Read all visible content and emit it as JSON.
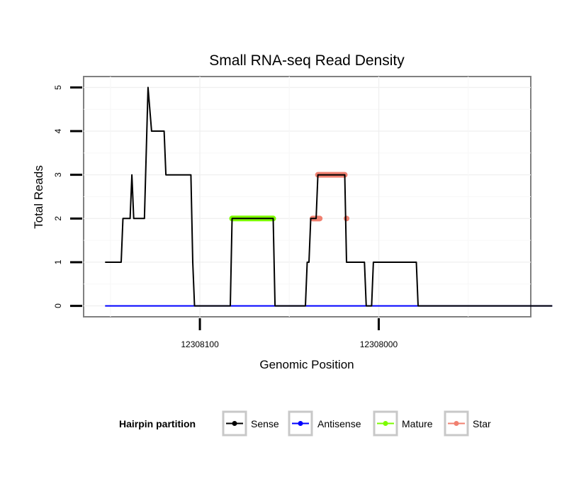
{
  "chart_data": {
    "type": "line",
    "title": "Small RNA-seq Read Density",
    "xlabel": "Genomic Position",
    "ylabel": "Total Reads",
    "x_reversed": true,
    "xlim": [
      12308165,
      12307915
    ],
    "ylim": [
      -0.25,
      5.25
    ],
    "x_ticks": [
      {
        "value": 12308100,
        "label": "12308100"
      },
      {
        "value": 12308000,
        "label": "12308000"
      }
    ],
    "y_ticks": [
      {
        "value": 0,
        "label": "0"
      },
      {
        "value": 1,
        "label": "1"
      },
      {
        "value": 2,
        "label": "2"
      },
      {
        "value": 3,
        "label": "3"
      },
      {
        "value": 4,
        "label": "4"
      },
      {
        "value": 5,
        "label": "5"
      }
    ],
    "grid": true,
    "series": [
      {
        "name": "Sense",
        "color": "#000000",
        "points": [
          [
            12308153,
            1
          ],
          [
            12308144,
            1
          ],
          [
            12308143,
            2
          ],
          [
            12308139,
            2
          ],
          [
            12308138,
            3
          ],
          [
            12308137,
            2
          ],
          [
            12308131,
            2
          ],
          [
            12308129,
            5
          ],
          [
            12308127,
            4
          ],
          [
            12308120,
            4
          ],
          [
            12308119,
            3
          ],
          [
            12308105,
            3
          ],
          [
            12308104,
            1
          ],
          [
            12308103,
            0
          ],
          [
            12308083,
            0
          ],
          [
            12308082,
            2
          ],
          [
            12308059,
            2
          ],
          [
            12308058,
            0
          ],
          [
            12308041,
            0
          ],
          [
            12308040,
            1
          ],
          [
            12308039,
            1
          ],
          [
            12308038,
            2
          ],
          [
            12308035,
            2
          ],
          [
            12308034,
            3
          ],
          [
            12308019,
            3
          ],
          [
            12308018,
            1
          ],
          [
            12308008,
            1
          ],
          [
            12308007,
            0
          ],
          [
            12308004,
            0
          ],
          [
            12308003,
            1
          ],
          [
            12307979,
            1
          ],
          [
            12307978,
            0
          ],
          [
            12307903,
            0
          ]
        ]
      },
      {
        "name": "Antisense",
        "color": "#0000ff",
        "points": [
          [
            12308153,
            0
          ],
          [
            12307903,
            0
          ]
        ]
      },
      {
        "name": "Mature",
        "color": "#7cfc00",
        "points": [
          [
            12308082,
            2
          ],
          [
            12308059,
            2
          ]
        ]
      },
      {
        "name": "Star",
        "color": "#f08070",
        "points": [
          [
            12308037,
            2
          ],
          [
            12308033,
            2
          ],
          [
            12308034,
            3
          ],
          [
            12308019,
            3
          ],
          [
            12308018,
            2
          ]
        ]
      }
    ],
    "legend": {
      "position": "bottom",
      "title": "Hairpin partition",
      "entries": [
        "Sense",
        "Antisense",
        "Mature",
        "Star"
      ]
    }
  }
}
